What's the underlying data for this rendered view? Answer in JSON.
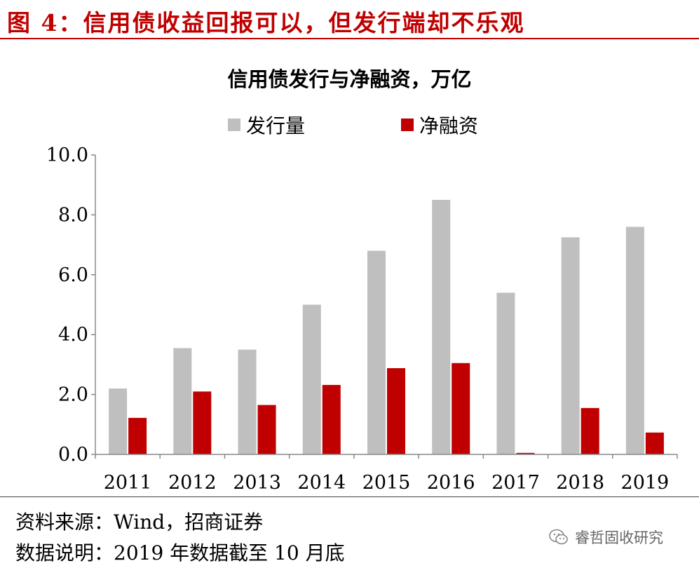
{
  "figure": {
    "title": "图 4：信用债收益回报可以，但发行端却不乐观"
  },
  "chart_data": {
    "type": "bar",
    "title": "信用债发行与净融资，万亿",
    "categories": [
      "2011",
      "2012",
      "2013",
      "2014",
      "2015",
      "2016",
      "2017",
      "2018",
      "2019"
    ],
    "series": [
      {
        "name": "发行量",
        "color": "#c0bfc0",
        "values": [
          2.2,
          3.55,
          3.5,
          5.0,
          6.8,
          8.5,
          5.4,
          7.25,
          7.6
        ]
      },
      {
        "name": "净融资",
        "color": "#c00000",
        "values": [
          1.22,
          2.1,
          1.65,
          2.32,
          2.88,
          3.05,
          0.05,
          1.55,
          0.73
        ]
      }
    ],
    "y_ticks": [
      "0.0",
      "2.0",
      "4.0",
      "6.0",
      "8.0",
      "10.0"
    ],
    "ylim": [
      0,
      10
    ],
    "legend_position": "top",
    "grid": false
  },
  "footer": {
    "source": "资料来源：Wind，招商证券",
    "note": "数据说明：2019 年数据截至 10 月底"
  },
  "watermark": {
    "icon": "wechat-icon",
    "text": "睿哲固收研究"
  }
}
